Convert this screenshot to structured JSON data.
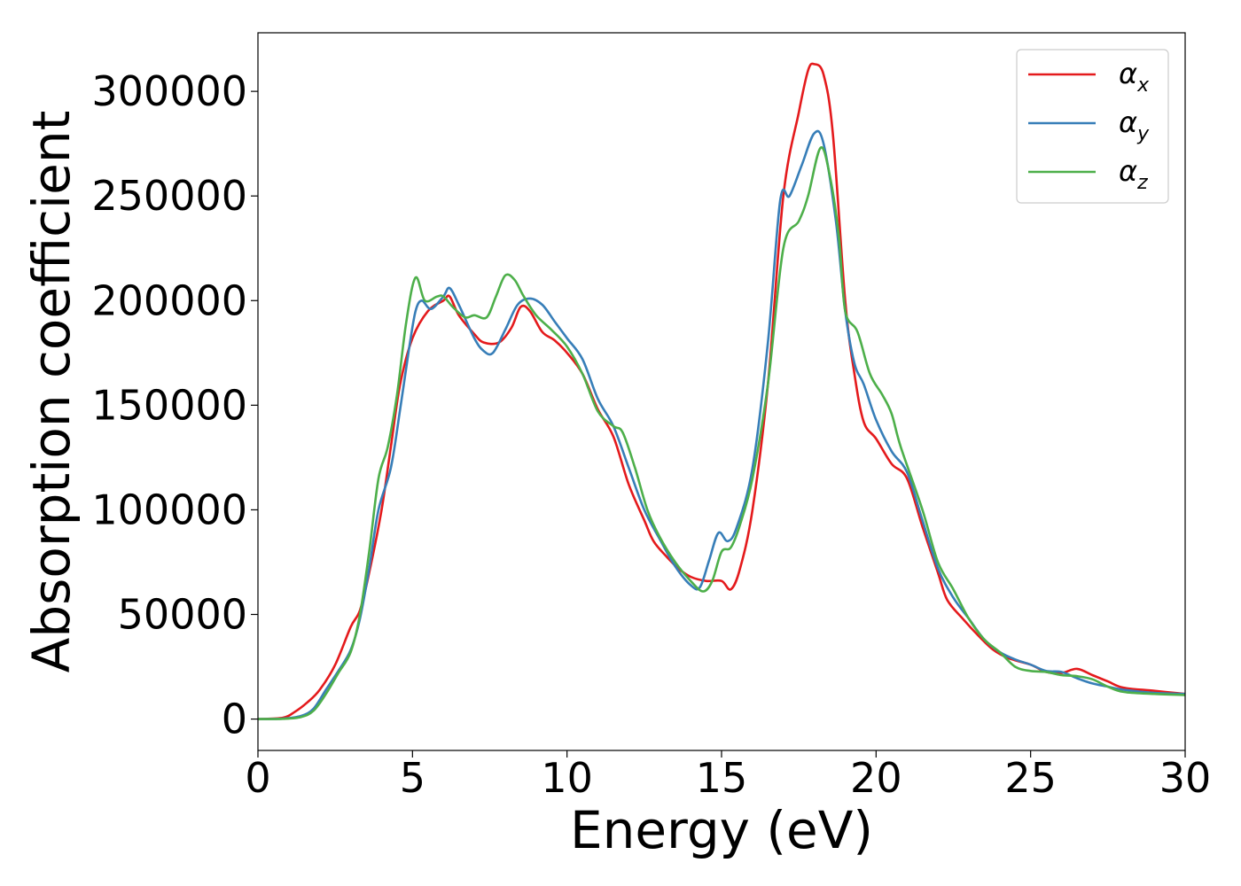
{
  "chart_data": {
    "type": "line",
    "title": "",
    "xlabel": "Energy (eV)",
    "ylabel": "Absorption coefficient",
    "xlim": [
      0,
      30
    ],
    "ylim": [
      -15000,
      328000
    ],
    "xticks": [
      0,
      5,
      10,
      15,
      20,
      25,
      30
    ],
    "yticks": [
      0,
      50000,
      100000,
      150000,
      200000,
      250000,
      300000
    ],
    "grid": false,
    "legend_position": "top-right",
    "series": [
      {
        "name": "αx",
        "legend_base": "α",
        "legend_sub": "x",
        "color": "#e41a1c",
        "points": [
          [
            0,
            0
          ],
          [
            0.8,
            600
          ],
          [
            1.2,
            3500
          ],
          [
            1.6,
            8000
          ],
          [
            2.0,
            14000
          ],
          [
            2.5,
            26000
          ],
          [
            3.0,
            44000
          ],
          [
            3.3,
            52000
          ],
          [
            3.6,
            70000
          ],
          [
            4.0,
            100000
          ],
          [
            4.3,
            130000
          ],
          [
            4.6,
            160000
          ],
          [
            5.0,
            182000
          ],
          [
            5.5,
            195000
          ],
          [
            6.0,
            200000
          ],
          [
            6.2,
            202000
          ],
          [
            6.5,
            193000
          ],
          [
            7.0,
            184000
          ],
          [
            7.3,
            180000
          ],
          [
            7.8,
            180000
          ],
          [
            8.2,
            187000
          ],
          [
            8.5,
            197000
          ],
          [
            8.8,
            195000
          ],
          [
            9.2,
            185000
          ],
          [
            9.6,
            181000
          ],
          [
            10.0,
            175000
          ],
          [
            10.5,
            165000
          ],
          [
            11.0,
            148000
          ],
          [
            11.5,
            135000
          ],
          [
            12.0,
            112000
          ],
          [
            12.5,
            95000
          ],
          [
            12.8,
            85000
          ],
          [
            13.2,
            78000
          ],
          [
            13.6,
            72000
          ],
          [
            14.0,
            68000
          ],
          [
            14.5,
            66000
          ],
          [
            15.0,
            66000
          ],
          [
            15.3,
            62000
          ],
          [
            15.6,
            72000
          ],
          [
            16.0,
            100000
          ],
          [
            16.5,
            160000
          ],
          [
            17.0,
            250000
          ],
          [
            17.5,
            290000
          ],
          [
            17.8,
            310000
          ],
          [
            18.0,
            313000
          ],
          [
            18.3,
            308000
          ],
          [
            18.6,
            280000
          ],
          [
            19.0,
            200000
          ],
          [
            19.3,
            165000
          ],
          [
            19.6,
            142000
          ],
          [
            20.0,
            134000
          ],
          [
            20.5,
            122000
          ],
          [
            21.0,
            115000
          ],
          [
            21.5,
            92000
          ],
          [
            22.0,
            70000
          ],
          [
            22.3,
            57000
          ],
          [
            22.8,
            48000
          ],
          [
            23.3,
            40000
          ],
          [
            23.8,
            33000
          ],
          [
            24.3,
            29000
          ],
          [
            25.0,
            26000
          ],
          [
            25.5,
            22500
          ],
          [
            26.0,
            22000
          ],
          [
            26.5,
            24000
          ],
          [
            27.0,
            21000
          ],
          [
            27.5,
            18000
          ],
          [
            28.0,
            15000
          ],
          [
            29.0,
            13500
          ],
          [
            30.0,
            12000
          ]
        ]
      },
      {
        "name": "αy",
        "legend_base": "α",
        "legend_sub": "y",
        "color": "#377eb8",
        "points": [
          [
            0,
            0
          ],
          [
            0.8,
            200
          ],
          [
            1.4,
            1500
          ],
          [
            1.8,
            5000
          ],
          [
            2.2,
            14000
          ],
          [
            2.6,
            23000
          ],
          [
            3.0,
            33000
          ],
          [
            3.3,
            48000
          ],
          [
            3.6,
            72000
          ],
          [
            3.9,
            100000
          ],
          [
            4.3,
            120000
          ],
          [
            4.6,
            148000
          ],
          [
            4.9,
            178000
          ],
          [
            5.1,
            195000
          ],
          [
            5.3,
            200000
          ],
          [
            5.6,
            196000
          ],
          [
            6.0,
            202000
          ],
          [
            6.2,
            206000
          ],
          [
            6.5,
            198000
          ],
          [
            7.0,
            182000
          ],
          [
            7.3,
            176000
          ],
          [
            7.6,
            175000
          ],
          [
            8.0,
            186000
          ],
          [
            8.4,
            198000
          ],
          [
            8.8,
            201000
          ],
          [
            9.2,
            198000
          ],
          [
            9.6,
            190000
          ],
          [
            10.0,
            182000
          ],
          [
            10.5,
            172000
          ],
          [
            11.0,
            153000
          ],
          [
            11.5,
            140000
          ],
          [
            12.0,
            120000
          ],
          [
            12.5,
            100000
          ],
          [
            13.0,
            86000
          ],
          [
            13.5,
            73000
          ],
          [
            14.0,
            64000
          ],
          [
            14.3,
            63000
          ],
          [
            14.6,
            76000
          ],
          [
            14.9,
            89000
          ],
          [
            15.2,
            85000
          ],
          [
            15.5,
            92000
          ],
          [
            16.0,
            120000
          ],
          [
            16.5,
            180000
          ],
          [
            16.9,
            248000
          ],
          [
            17.2,
            250000
          ],
          [
            17.6,
            265000
          ],
          [
            18.0,
            280000
          ],
          [
            18.3,
            275000
          ],
          [
            18.7,
            238000
          ],
          [
            19.0,
            195000
          ],
          [
            19.3,
            170000
          ],
          [
            19.6,
            160000
          ],
          [
            20.0,
            143000
          ],
          [
            20.5,
            128000
          ],
          [
            21.0,
            118000
          ],
          [
            21.5,
            95000
          ],
          [
            22.0,
            72000
          ],
          [
            22.5,
            58000
          ],
          [
            23.0,
            48000
          ],
          [
            23.5,
            38000
          ],
          [
            24.0,
            32000
          ],
          [
            24.5,
            28500
          ],
          [
            25.0,
            26000
          ],
          [
            25.5,
            23000
          ],
          [
            26.0,
            22500
          ],
          [
            26.5,
            19500
          ],
          [
            27.0,
            17000
          ],
          [
            27.5,
            15500
          ],
          [
            28.0,
            14000
          ],
          [
            29.0,
            12500
          ],
          [
            30.0,
            12000
          ]
        ]
      },
      {
        "name": "αz",
        "legend_base": "α",
        "legend_sub": "z",
        "color": "#4daf4a",
        "points": [
          [
            0,
            0
          ],
          [
            0.8,
            100
          ],
          [
            1.4,
            1000
          ],
          [
            1.8,
            4000
          ],
          [
            2.2,
            12000
          ],
          [
            2.6,
            22000
          ],
          [
            3.0,
            32000
          ],
          [
            3.3,
            50000
          ],
          [
            3.6,
            80000
          ],
          [
            3.9,
            115000
          ],
          [
            4.2,
            130000
          ],
          [
            4.5,
            155000
          ],
          [
            4.8,
            190000
          ],
          [
            5.1,
            211000
          ],
          [
            5.4,
            200000
          ],
          [
            5.8,
            202000
          ],
          [
            6.0,
            202000
          ],
          [
            6.3,
            197000
          ],
          [
            6.7,
            192000
          ],
          [
            7.0,
            193000
          ],
          [
            7.4,
            192000
          ],
          [
            7.7,
            202000
          ],
          [
            8.0,
            212000
          ],
          [
            8.3,
            210000
          ],
          [
            8.6,
            202000
          ],
          [
            9.0,
            193000
          ],
          [
            9.5,
            186000
          ],
          [
            10.0,
            178000
          ],
          [
            10.5,
            165000
          ],
          [
            11.0,
            147000
          ],
          [
            11.5,
            140000
          ],
          [
            11.8,
            137000
          ],
          [
            12.2,
            120000
          ],
          [
            12.6,
            100000
          ],
          [
            13.0,
            87000
          ],
          [
            13.5,
            75000
          ],
          [
            14.0,
            66000
          ],
          [
            14.4,
            61000
          ],
          [
            14.7,
            66000
          ],
          [
            15.0,
            80000
          ],
          [
            15.3,
            82000
          ],
          [
            15.6,
            93000
          ],
          [
            16.0,
            115000
          ],
          [
            16.5,
            160000
          ],
          [
            17.0,
            225000
          ],
          [
            17.5,
            238000
          ],
          [
            17.8,
            250000
          ],
          [
            18.2,
            273000
          ],
          [
            18.5,
            260000
          ],
          [
            18.8,
            230000
          ],
          [
            19.0,
            195000
          ],
          [
            19.4,
            185000
          ],
          [
            19.8,
            165000
          ],
          [
            20.2,
            155000
          ],
          [
            20.5,
            146000
          ],
          [
            20.8,
            130000
          ],
          [
            21.5,
            100000
          ],
          [
            22.0,
            75000
          ],
          [
            22.5,
            62000
          ],
          [
            23.0,
            48000
          ],
          [
            23.5,
            38000
          ],
          [
            24.0,
            32000
          ],
          [
            24.5,
            25000
          ],
          [
            25.0,
            23000
          ],
          [
            25.5,
            22500
          ],
          [
            26.0,
            21000
          ],
          [
            26.5,
            20500
          ],
          [
            27.0,
            19000
          ],
          [
            27.5,
            15500
          ],
          [
            28.0,
            13000
          ],
          [
            29.0,
            12000
          ],
          [
            30.0,
            11500
          ]
        ]
      }
    ]
  }
}
